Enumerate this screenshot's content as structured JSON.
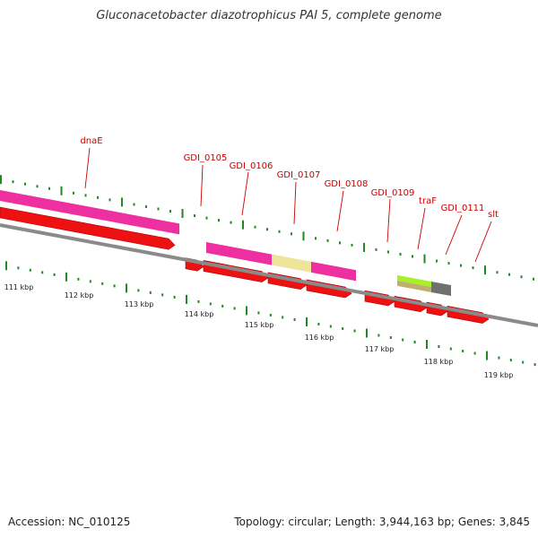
{
  "title": "Gluconacetobacter diazotrophicus PAI 5, complete genome",
  "footer": {
    "accession": "Accession: NC_010125",
    "summary": "Topology: circular; Length: 3,944,163 bp; Genes: 3,845"
  },
  "colors": {
    "cds": "#ee1111",
    "gene_feature": "#ee2fa0",
    "pale_feature": "#efe59a",
    "green_feature": "#a8f028",
    "olive_feature": "#c0b070",
    "gray_feature": "#707070",
    "backbone": "#8a8a8a",
    "tick": "#1f8a1f",
    "label_line": "#cc0000"
  },
  "gene_labels": [
    "dnaE",
    "GDI_0105",
    "GDI_0106",
    "GDI_0107",
    "GDI_0108",
    "GDI_0109",
    "traF",
    "GDI_0111",
    "slt"
  ],
  "scale_labels": [
    "111 kbp",
    "112 kbp",
    "113 kbp",
    "114 kbp",
    "115 kbp",
    "116 kbp",
    "117 kbp",
    "118 kbp",
    "119 kbp"
  ]
}
